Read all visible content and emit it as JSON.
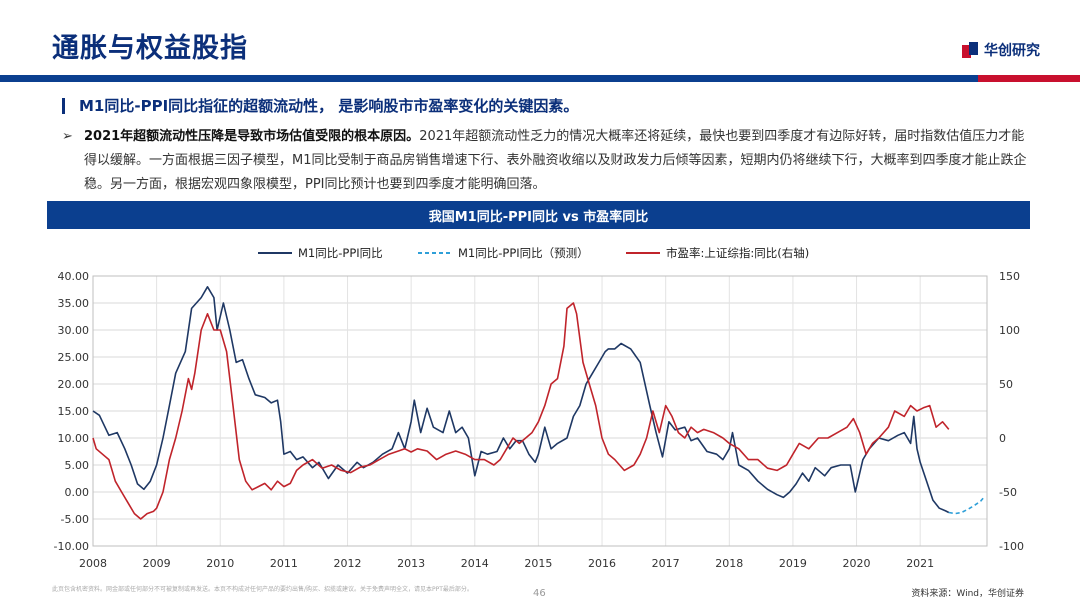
{
  "page": {
    "title": "通胀与权益股指",
    "brand": "华创研究",
    "headline": "M1同比-PPI同比指征的超额流动性， 是影响股市市盈率变化的关键因素。",
    "bullet_lead": "2021年超额流动性压降是导致市场估值受限的根本原因。",
    "bullet_body": "2021年超额流动性乏力的情况大概率还将延续，最快也要到四季度才有边际好转，届时指数估值压力才能得以缓解。一方面根据三因子模型，M1同比受制于商品房销售增速下行、表外融资收缩以及财政发力后倾等因素，短期内仍将继续下行，大概率到四季度才能止跌企稳。另一方面，根据宏观四象限模型，PPI同比预计也要到四季度才能明确回落。",
    "chart_title": "我国M1同比-PPI同比 vs 市盈率同比",
    "footer_disclaimer": "此页包含机密资料。网金部或任何部分不可被复制或再发送。本页不构成对任何产品的要约出售/购买、招揽或建议。关于免费声明全文，请见本PPT最后部分。",
    "page_number": "46",
    "source": "资料来源：Wind，华创证券"
  },
  "colors": {
    "navy": "#0b2f7a",
    "header_blue": "#0b3f8f",
    "accent_red": "#c8102e",
    "series_m1": "#1f3864",
    "series_forecast": "#2e9fd8",
    "series_pe": "#c0242b"
  },
  "chart_data": {
    "type": "line",
    "title": "我国M1同比-PPI同比 vs 市盈率同比",
    "xlabel": "",
    "ylabel": "",
    "x_ticks": [
      "2008",
      "2009",
      "2010",
      "2011",
      "2012",
      "2013",
      "2014",
      "2015",
      "2016",
      "2017",
      "2018",
      "2019",
      "2020",
      "2021"
    ],
    "x_range": [
      2008,
      2022.05
    ],
    "ylim_left": [
      -10,
      40
    ],
    "yticks_left": [
      "-10.00",
      "-5.00",
      "0.00",
      "5.00",
      "10.00",
      "15.00",
      "20.00",
      "25.00",
      "30.00",
      "35.00",
      "40.00"
    ],
    "ylim_right": [
      -100,
      150
    ],
    "yticks_right": [
      "-100",
      "-50",
      "0",
      "50",
      "100",
      "150"
    ],
    "grid": true,
    "legend_position": "top",
    "series": [
      {
        "name": "M1同比-PPI同比",
        "axis": "left",
        "style": "solid",
        "points": [
          [
            2008.0,
            15.0
          ],
          [
            2008.1,
            14.2
          ],
          [
            2008.25,
            10.5
          ],
          [
            2008.38,
            11.0
          ],
          [
            2008.5,
            8.0
          ],
          [
            2008.6,
            5.0
          ],
          [
            2008.7,
            1.5
          ],
          [
            2008.8,
            0.5
          ],
          [
            2008.9,
            2.0
          ],
          [
            2009.0,
            5.0
          ],
          [
            2009.1,
            10.0
          ],
          [
            2009.2,
            16.0
          ],
          [
            2009.3,
            22.0
          ],
          [
            2009.45,
            26.0
          ],
          [
            2009.55,
            34.0
          ],
          [
            2009.7,
            36.0
          ],
          [
            2009.8,
            38.0
          ],
          [
            2009.9,
            36.0
          ],
          [
            2009.95,
            30.0
          ],
          [
            2010.05,
            35.0
          ],
          [
            2010.15,
            30.0
          ],
          [
            2010.25,
            24.0
          ],
          [
            2010.35,
            24.5
          ],
          [
            2010.45,
            21.0
          ],
          [
            2010.55,
            18.0
          ],
          [
            2010.7,
            17.5
          ],
          [
            2010.8,
            16.5
          ],
          [
            2010.9,
            17.0
          ],
          [
            2010.95,
            13.0
          ],
          [
            2011.0,
            7.0
          ],
          [
            2011.1,
            7.5
          ],
          [
            2011.2,
            6.0
          ],
          [
            2011.3,
            6.5
          ],
          [
            2011.45,
            4.5
          ],
          [
            2011.55,
            5.5
          ],
          [
            2011.7,
            2.5
          ],
          [
            2011.85,
            5.0
          ],
          [
            2012.0,
            3.5
          ],
          [
            2012.15,
            5.5
          ],
          [
            2012.25,
            4.5
          ],
          [
            2012.4,
            5.5
          ],
          [
            2012.55,
            7.0
          ],
          [
            2012.7,
            8.0
          ],
          [
            2012.8,
            11.0
          ],
          [
            2012.9,
            8.0
          ],
          [
            2013.0,
            13.0
          ],
          [
            2013.05,
            17.0
          ],
          [
            2013.15,
            11.0
          ],
          [
            2013.25,
            15.5
          ],
          [
            2013.35,
            12.0
          ],
          [
            2013.5,
            11.0
          ],
          [
            2013.6,
            15.0
          ],
          [
            2013.7,
            11.0
          ],
          [
            2013.8,
            12.0
          ],
          [
            2013.9,
            10.0
          ],
          [
            2014.0,
            3.0
          ],
          [
            2014.1,
            7.5
          ],
          [
            2014.2,
            7.0
          ],
          [
            2014.35,
            7.5
          ],
          [
            2014.45,
            10.0
          ],
          [
            2014.55,
            8.0
          ],
          [
            2014.65,
            9.5
          ],
          [
            2014.75,
            9.5
          ],
          [
            2014.85,
            7.0
          ],
          [
            2014.95,
            5.5
          ],
          [
            2015.0,
            7.0
          ],
          [
            2015.1,
            12.0
          ],
          [
            2015.2,
            8.0
          ],
          [
            2015.3,
            9.0
          ],
          [
            2015.45,
            10.0
          ],
          [
            2015.55,
            14.0
          ],
          [
            2015.65,
            16.0
          ],
          [
            2015.75,
            20.0
          ],
          [
            2015.85,
            22.0
          ],
          [
            2015.95,
            24.0
          ],
          [
            2016.05,
            26.0
          ],
          [
            2016.1,
            26.5
          ],
          [
            2016.2,
            26.5
          ],
          [
            2016.3,
            27.5
          ],
          [
            2016.45,
            26.5
          ],
          [
            2016.6,
            24.0
          ],
          [
            2016.75,
            16.0
          ],
          [
            2016.85,
            11.0
          ],
          [
            2016.95,
            6.5
          ],
          [
            2017.05,
            13.0
          ],
          [
            2017.15,
            11.5
          ],
          [
            2017.3,
            12.0
          ],
          [
            2017.4,
            9.5
          ],
          [
            2017.5,
            10.0
          ],
          [
            2017.65,
            7.5
          ],
          [
            2017.8,
            7.0
          ],
          [
            2017.9,
            6.0
          ],
          [
            2018.0,
            8.0
          ],
          [
            2018.05,
            11.0
          ],
          [
            2018.15,
            5.0
          ],
          [
            2018.3,
            4.0
          ],
          [
            2018.45,
            2.0
          ],
          [
            2018.6,
            0.5
          ],
          [
            2018.75,
            -0.5
          ],
          [
            2018.85,
            -1.0
          ],
          [
            2018.95,
            0.0
          ],
          [
            2019.05,
            1.5
          ],
          [
            2019.15,
            3.5
          ],
          [
            2019.25,
            2.0
          ],
          [
            2019.35,
            4.5
          ],
          [
            2019.5,
            3.0
          ],
          [
            2019.6,
            4.5
          ],
          [
            2019.75,
            5.0
          ],
          [
            2019.9,
            5.0
          ],
          [
            2019.98,
            0.0
          ],
          [
            2020.1,
            6.0
          ],
          [
            2020.2,
            8.0
          ],
          [
            2020.35,
            10.0
          ],
          [
            2020.5,
            9.5
          ],
          [
            2020.65,
            10.5
          ],
          [
            2020.75,
            11.0
          ],
          [
            2020.85,
            9.0
          ],
          [
            2020.9,
            14.0
          ],
          [
            2020.95,
            8.0
          ],
          [
            2021.0,
            5.5
          ],
          [
            2021.1,
            2.0
          ],
          [
            2021.2,
            -1.5
          ],
          [
            2021.3,
            -3.0
          ],
          [
            2021.4,
            -3.5
          ],
          [
            2021.45,
            -3.8
          ]
        ]
      },
      {
        "name": "M1同比-PPI同比（预测）",
        "axis": "left",
        "style": "dashed",
        "points": [
          [
            2021.45,
            -3.8
          ],
          [
            2021.55,
            -4.0
          ],
          [
            2021.65,
            -3.8
          ],
          [
            2021.75,
            -3.2
          ],
          [
            2021.85,
            -2.5
          ],
          [
            2021.95,
            -1.7
          ],
          [
            2022.0,
            -1.0
          ]
        ]
      },
      {
        "name": "市盈率:上证综指:同比(右轴)",
        "axis": "right",
        "style": "solid",
        "points": [
          [
            2008.0,
            0
          ],
          [
            2008.05,
            -10
          ],
          [
            2008.15,
            -15
          ],
          [
            2008.25,
            -20
          ],
          [
            2008.35,
            -40
          ],
          [
            2008.45,
            -50
          ],
          [
            2008.55,
            -60
          ],
          [
            2008.65,
            -70
          ],
          [
            2008.75,
            -75
          ],
          [
            2008.85,
            -70
          ],
          [
            2008.95,
            -68
          ],
          [
            2009.0,
            -65
          ],
          [
            2009.1,
            -50
          ],
          [
            2009.2,
            -20
          ],
          [
            2009.3,
            0
          ],
          [
            2009.4,
            25
          ],
          [
            2009.5,
            55
          ],
          [
            2009.55,
            45
          ],
          [
            2009.6,
            60
          ],
          [
            2009.7,
            100
          ],
          [
            2009.8,
            115
          ],
          [
            2009.9,
            100
          ],
          [
            2010.0,
            100
          ],
          [
            2010.1,
            80
          ],
          [
            2010.2,
            30
          ],
          [
            2010.3,
            -20
          ],
          [
            2010.4,
            -40
          ],
          [
            2010.5,
            -48
          ],
          [
            2010.6,
            -45
          ],
          [
            2010.7,
            -42
          ],
          [
            2010.8,
            -48
          ],
          [
            2010.9,
            -40
          ],
          [
            2011.0,
            -45
          ],
          [
            2011.1,
            -42
          ],
          [
            2011.2,
            -30
          ],
          [
            2011.3,
            -25
          ],
          [
            2011.45,
            -20
          ],
          [
            2011.6,
            -28
          ],
          [
            2011.75,
            -25
          ],
          [
            2011.9,
            -30
          ],
          [
            2012.05,
            -32
          ],
          [
            2012.2,
            -27
          ],
          [
            2012.35,
            -25
          ],
          [
            2012.5,
            -20
          ],
          [
            2012.65,
            -15
          ],
          [
            2012.8,
            -12
          ],
          [
            2012.9,
            -10
          ],
          [
            2013.0,
            -13
          ],
          [
            2013.1,
            -10
          ],
          [
            2013.25,
            -12
          ],
          [
            2013.4,
            -20
          ],
          [
            2013.55,
            -15
          ],
          [
            2013.7,
            -12
          ],
          [
            2013.85,
            -15
          ],
          [
            2014.0,
            -20
          ],
          [
            2014.15,
            -20
          ],
          [
            2014.3,
            -25
          ],
          [
            2014.4,
            -20
          ],
          [
            2014.5,
            -10
          ],
          [
            2014.6,
            0
          ],
          [
            2014.7,
            -5
          ],
          [
            2014.8,
            0
          ],
          [
            2014.9,
            5
          ],
          [
            2015.0,
            15
          ],
          [
            2015.1,
            30
          ],
          [
            2015.2,
            50
          ],
          [
            2015.3,
            55
          ],
          [
            2015.4,
            85
          ],
          [
            2015.45,
            120
          ],
          [
            2015.55,
            125
          ],
          [
            2015.6,
            115
          ],
          [
            2015.7,
            70
          ],
          [
            2015.8,
            50
          ],
          [
            2015.9,
            30
          ],
          [
            2016.0,
            0
          ],
          [
            2016.1,
            -15
          ],
          [
            2016.2,
            -20
          ],
          [
            2016.35,
            -30
          ],
          [
            2016.5,
            -25
          ],
          [
            2016.6,
            -15
          ],
          [
            2016.7,
            0
          ],
          [
            2016.8,
            25
          ],
          [
            2016.9,
            5
          ],
          [
            2017.0,
            30
          ],
          [
            2017.1,
            20
          ],
          [
            2017.2,
            5
          ],
          [
            2017.3,
            0
          ],
          [
            2017.4,
            10
          ],
          [
            2017.5,
            5
          ],
          [
            2017.6,
            8
          ],
          [
            2017.75,
            5
          ],
          [
            2017.9,
            0
          ],
          [
            2018.0,
            -5
          ],
          [
            2018.15,
            -10
          ],
          [
            2018.3,
            -20
          ],
          [
            2018.45,
            -20
          ],
          [
            2018.6,
            -28
          ],
          [
            2018.75,
            -30
          ],
          [
            2018.9,
            -25
          ],
          [
            2019.0,
            -15
          ],
          [
            2019.1,
            -5
          ],
          [
            2019.25,
            -10
          ],
          [
            2019.4,
            0
          ],
          [
            2019.55,
            0
          ],
          [
            2019.7,
            5
          ],
          [
            2019.85,
            10
          ],
          [
            2019.95,
            18
          ],
          [
            2020.05,
            5
          ],
          [
            2020.15,
            -15
          ],
          [
            2020.25,
            -5
          ],
          [
            2020.35,
            0
          ],
          [
            2020.5,
            10
          ],
          [
            2020.6,
            25
          ],
          [
            2020.75,
            20
          ],
          [
            2020.85,
            30
          ],
          [
            2020.95,
            25
          ],
          [
            2021.05,
            28
          ],
          [
            2021.15,
            30
          ],
          [
            2021.25,
            10
          ],
          [
            2021.35,
            15
          ],
          [
            2021.45,
            8
          ]
        ]
      }
    ]
  }
}
